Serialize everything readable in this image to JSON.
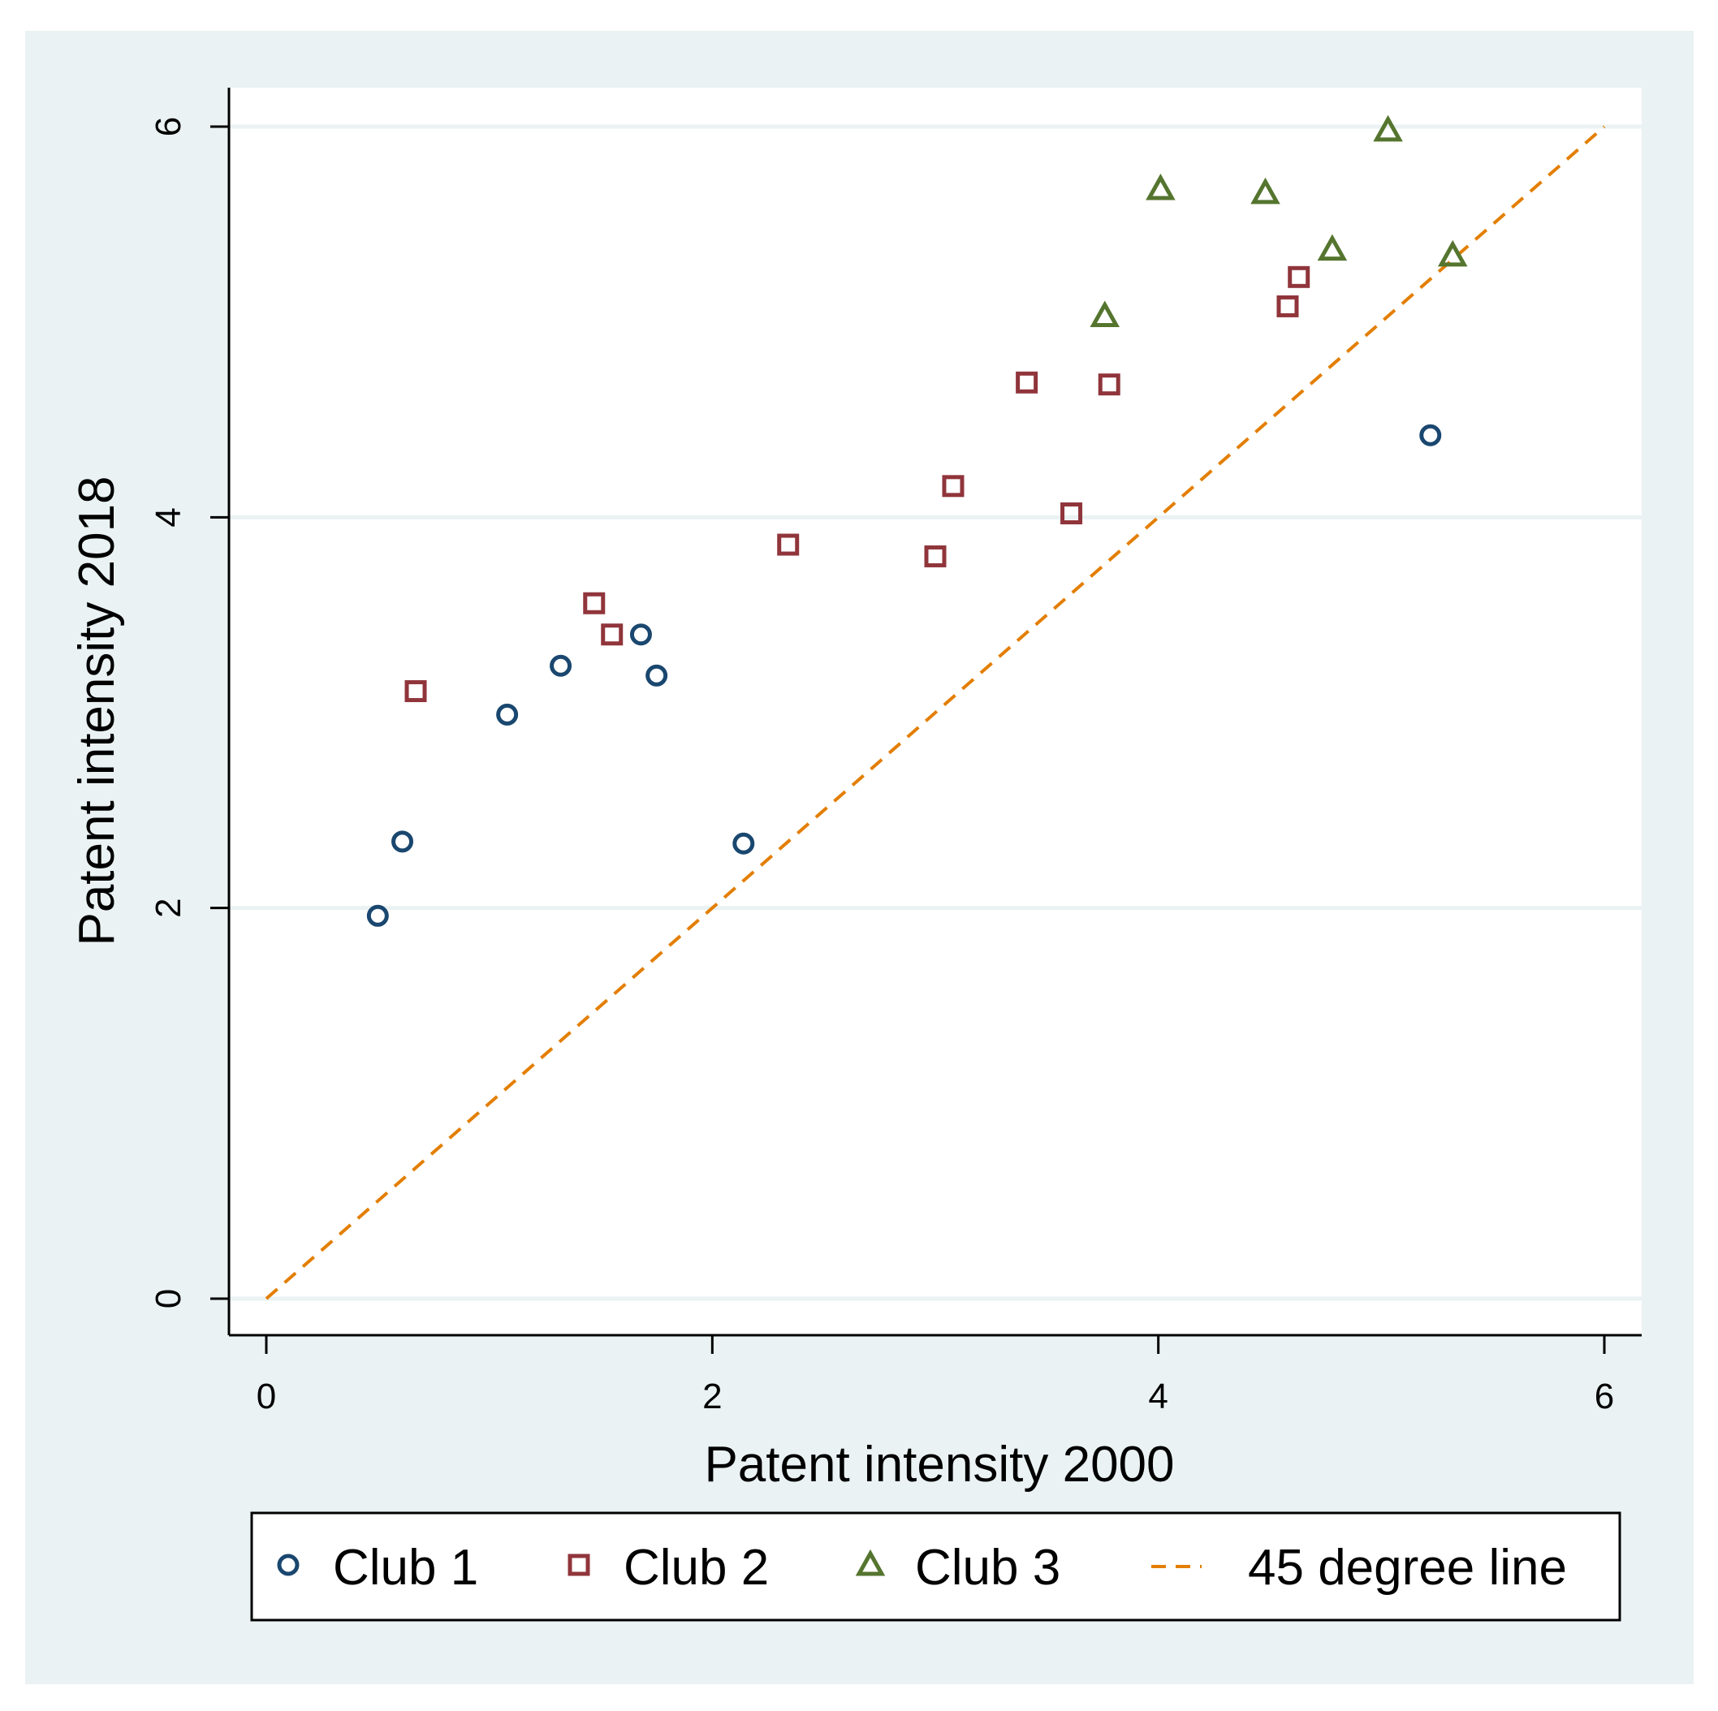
{
  "chart_data": {
    "type": "scatter",
    "xlabel": "Patent intensity 2000",
    "ylabel": "Patent intensity 2018",
    "xlim": [
      0,
      6
    ],
    "ylim": [
      0,
      6
    ],
    "xticks": [
      0,
      2,
      4,
      6
    ],
    "yticks": [
      0,
      2,
      4,
      6
    ],
    "grid": "horizontal",
    "legend_position": "bottom",
    "colors": {
      "background": "#eaf2f3",
      "grid": "#eaf2f3",
      "club1": "#1a476f",
      "club2": "#90353b",
      "club3": "#55752f",
      "line45": "#e37e00"
    },
    "series": [
      {
        "name": "Club 1",
        "marker": "circle",
        "color": "#1a476f",
        "points": [
          [
            0.5,
            1.96
          ],
          [
            0.61,
            2.34
          ],
          [
            1.08,
            2.99
          ],
          [
            1.32,
            3.24
          ],
          [
            1.68,
            3.4
          ],
          [
            1.75,
            3.19
          ],
          [
            2.14,
            2.33
          ],
          [
            5.22,
            4.42
          ]
        ]
      },
      {
        "name": "Club 2",
        "marker": "square",
        "color": "#90353b",
        "points": [
          [
            0.67,
            3.11
          ],
          [
            1.47,
            3.56
          ],
          [
            1.55,
            3.4
          ],
          [
            2.34,
            3.86
          ],
          [
            3.0,
            3.8
          ],
          [
            3.08,
            4.16
          ],
          [
            3.41,
            4.69
          ],
          [
            3.61,
            4.02
          ],
          [
            3.78,
            4.68
          ],
          [
            4.58,
            5.08
          ],
          [
            4.63,
            5.23
          ]
        ]
      },
      {
        "name": "Club 3",
        "marker": "triangle",
        "color": "#55752f",
        "points": [
          [
            3.76,
            5.03
          ],
          [
            4.01,
            5.68
          ],
          [
            4.48,
            5.66
          ],
          [
            4.78,
            5.37
          ],
          [
            5.03,
            5.98
          ],
          [
            5.32,
            5.34
          ]
        ]
      },
      {
        "name": "45 degree line",
        "type": "line",
        "style": "dashed",
        "color": "#e37e00",
        "points": [
          [
            0,
            0
          ],
          [
            6,
            6
          ]
        ]
      }
    ]
  }
}
